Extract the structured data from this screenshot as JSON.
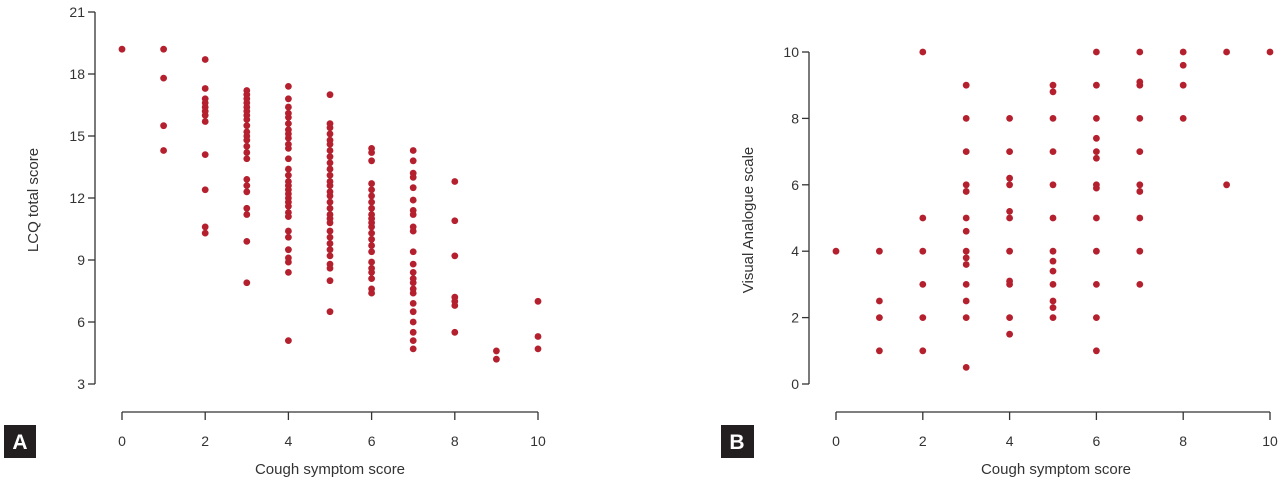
{
  "colors": {
    "marker": "#B5202E",
    "axis": "#333333",
    "tag_bg": "#231F20",
    "tag_text": "#ffffff"
  },
  "chart_data": [
    {
      "type": "scatter",
      "panel_label": "A",
      "xlabel": "Cough symptom score",
      "ylabel": "LCQ total score",
      "xlim": [
        0,
        10
      ],
      "ylim": [
        3,
        21
      ],
      "xticks": [
        0,
        2,
        4,
        6,
        8,
        10
      ],
      "yticks": [
        3,
        6,
        9,
        12,
        15,
        18,
        21
      ],
      "grid": false,
      "points": [
        [
          0,
          19.2
        ],
        [
          1,
          19.2
        ],
        [
          1,
          17.8
        ],
        [
          1,
          15.5
        ],
        [
          1,
          14.3
        ],
        [
          2,
          18.7
        ],
        [
          2,
          17.3
        ],
        [
          2,
          16.8
        ],
        [
          2,
          16.6
        ],
        [
          2,
          16.4
        ],
        [
          2,
          16.2
        ],
        [
          2,
          16.0
        ],
        [
          2,
          15.7
        ],
        [
          2,
          14.1
        ],
        [
          2,
          12.4
        ],
        [
          2,
          10.6
        ],
        [
          2,
          10.3
        ],
        [
          3,
          17.2
        ],
        [
          3,
          17.0
        ],
        [
          3,
          16.8
        ],
        [
          3,
          16.6
        ],
        [
          3,
          16.4
        ],
        [
          3,
          16.2
        ],
        [
          3,
          16.0
        ],
        [
          3,
          15.8
        ],
        [
          3,
          15.5
        ],
        [
          3,
          15.2
        ],
        [
          3,
          15.0
        ],
        [
          3,
          14.8
        ],
        [
          3,
          14.5
        ],
        [
          3,
          14.2
        ],
        [
          3,
          13.9
        ],
        [
          3,
          12.9
        ],
        [
          3,
          12.6
        ],
        [
          3,
          12.3
        ],
        [
          3,
          11.5
        ],
        [
          3,
          11.2
        ],
        [
          3,
          9.9
        ],
        [
          3,
          7.9
        ],
        [
          4,
          17.4
        ],
        [
          4,
          16.8
        ],
        [
          4,
          16.4
        ],
        [
          4,
          16.1
        ],
        [
          4,
          15.9
        ],
        [
          4,
          15.6
        ],
        [
          4,
          15.3
        ],
        [
          4,
          15.1
        ],
        [
          4,
          14.9
        ],
        [
          4,
          14.6
        ],
        [
          4,
          14.4
        ],
        [
          4,
          13.9
        ],
        [
          4,
          13.4
        ],
        [
          4,
          13.1
        ],
        [
          4,
          12.8
        ],
        [
          4,
          12.6
        ],
        [
          4,
          12.4
        ],
        [
          4,
          12.2
        ],
        [
          4,
          12.0
        ],
        [
          4,
          11.8
        ],
        [
          4,
          11.6
        ],
        [
          4,
          11.3
        ],
        [
          4,
          11.1
        ],
        [
          4,
          10.4
        ],
        [
          4,
          10.1
        ],
        [
          4,
          9.5
        ],
        [
          4,
          9.1
        ],
        [
          4,
          8.9
        ],
        [
          4,
          8.4
        ],
        [
          4,
          5.1
        ],
        [
          5,
          17.0
        ],
        [
          5,
          15.6
        ],
        [
          5,
          15.4
        ],
        [
          5,
          15.1
        ],
        [
          5,
          14.8
        ],
        [
          5,
          14.6
        ],
        [
          5,
          14.3
        ],
        [
          5,
          14.0
        ],
        [
          5,
          13.7
        ],
        [
          5,
          13.4
        ],
        [
          5,
          13.1
        ],
        [
          5,
          12.8
        ],
        [
          5,
          12.6
        ],
        [
          5,
          12.3
        ],
        [
          5,
          12.1
        ],
        [
          5,
          11.8
        ],
        [
          5,
          11.5
        ],
        [
          5,
          11.2
        ],
        [
          5,
          11.0
        ],
        [
          5,
          10.8
        ],
        [
          5,
          10.4
        ],
        [
          5,
          10.1
        ],
        [
          5,
          9.8
        ],
        [
          5,
          9.5
        ],
        [
          5,
          9.2
        ],
        [
          5,
          8.8
        ],
        [
          5,
          8.6
        ],
        [
          5,
          8.0
        ],
        [
          5,
          6.5
        ],
        [
          6,
          14.4
        ],
        [
          6,
          14.2
        ],
        [
          6,
          13.8
        ],
        [
          6,
          12.7
        ],
        [
          6,
          12.4
        ],
        [
          6,
          12.1
        ],
        [
          6,
          11.8
        ],
        [
          6,
          11.5
        ],
        [
          6,
          11.2
        ],
        [
          6,
          11.0
        ],
        [
          6,
          10.8
        ],
        [
          6,
          10.6
        ],
        [
          6,
          10.3
        ],
        [
          6,
          10.0
        ],
        [
          6,
          9.7
        ],
        [
          6,
          9.4
        ],
        [
          6,
          8.9
        ],
        [
          6,
          8.6
        ],
        [
          6,
          8.4
        ],
        [
          6,
          8.1
        ],
        [
          6,
          7.6
        ],
        [
          6,
          7.4
        ],
        [
          7,
          14.3
        ],
        [
          7,
          13.8
        ],
        [
          7,
          13.2
        ],
        [
          7,
          13.0
        ],
        [
          7,
          12.5
        ],
        [
          7,
          11.9
        ],
        [
          7,
          11.4
        ],
        [
          7,
          11.2
        ],
        [
          7,
          10.6
        ],
        [
          7,
          10.4
        ],
        [
          7,
          9.4
        ],
        [
          7,
          8.8
        ],
        [
          7,
          8.4
        ],
        [
          7,
          8.1
        ],
        [
          7,
          7.9
        ],
        [
          7,
          7.6
        ],
        [
          7,
          7.4
        ],
        [
          7,
          6.9
        ],
        [
          7,
          6.5
        ],
        [
          7,
          6.0
        ],
        [
          7,
          5.5
        ],
        [
          7,
          5.1
        ],
        [
          7,
          4.7
        ],
        [
          8,
          12.8
        ],
        [
          8,
          10.9
        ],
        [
          8,
          9.2
        ],
        [
          8,
          7.2
        ],
        [
          8,
          7.0
        ],
        [
          8,
          6.8
        ],
        [
          8,
          5.5
        ],
        [
          9,
          4.6
        ],
        [
          9,
          4.2
        ],
        [
          10,
          7.0
        ],
        [
          10,
          5.3
        ],
        [
          10,
          4.7
        ]
      ]
    },
    {
      "type": "scatter",
      "panel_label": "B",
      "xlabel": "Cough symptom score",
      "ylabel": "Visual Analogue scale",
      "xlim": [
        0,
        10
      ],
      "ylim": [
        0,
        10
      ],
      "xticks": [
        0,
        2,
        4,
        6,
        8,
        10
      ],
      "yticks": [
        0,
        2,
        4,
        6,
        8,
        10
      ],
      "grid": false,
      "points": [
        [
          0,
          4.0
        ],
        [
          1,
          4.0
        ],
        [
          1,
          2.5
        ],
        [
          1,
          2.0
        ],
        [
          1,
          1.0
        ],
        [
          2,
          10.0
        ],
        [
          2,
          5.0
        ],
        [
          2,
          4.0
        ],
        [
          2,
          3.0
        ],
        [
          2,
          2.0
        ],
        [
          2,
          1.0
        ],
        [
          3,
          9.0
        ],
        [
          3,
          8.0
        ],
        [
          3,
          7.0
        ],
        [
          3,
          6.0
        ],
        [
          3,
          5.8
        ],
        [
          3,
          5.0
        ],
        [
          3,
          4.6
        ],
        [
          3,
          4.0
        ],
        [
          3,
          3.8
        ],
        [
          3,
          3.6
        ],
        [
          3,
          3.0
        ],
        [
          3,
          2.5
        ],
        [
          3,
          2.0
        ],
        [
          3,
          0.5
        ],
        [
          4,
          8.0
        ],
        [
          4,
          7.0
        ],
        [
          4,
          6.2
        ],
        [
          4,
          6.0
        ],
        [
          4,
          5.2
        ],
        [
          4,
          5.0
        ],
        [
          4,
          4.0
        ],
        [
          4,
          3.1
        ],
        [
          4,
          3.0
        ],
        [
          4,
          2.0
        ],
        [
          4,
          1.5
        ],
        [
          5,
          9.0
        ],
        [
          5,
          8.8
        ],
        [
          5,
          8.0
        ],
        [
          5,
          7.0
        ],
        [
          5,
          6.0
        ],
        [
          5,
          5.0
        ],
        [
          5,
          4.0
        ],
        [
          5,
          3.7
        ],
        [
          5,
          3.4
        ],
        [
          5,
          3.0
        ],
        [
          5,
          2.5
        ],
        [
          5,
          2.3
        ],
        [
          5,
          2.0
        ],
        [
          6,
          10.0
        ],
        [
          6,
          9.0
        ],
        [
          6,
          8.0
        ],
        [
          6,
          7.4
        ],
        [
          6,
          7.0
        ],
        [
          6,
          6.8
        ],
        [
          6,
          6.0
        ],
        [
          6,
          5.9
        ],
        [
          6,
          5.0
        ],
        [
          6,
          4.0
        ],
        [
          6,
          3.0
        ],
        [
          6,
          2.0
        ],
        [
          6,
          1.0
        ],
        [
          7,
          10.0
        ],
        [
          7,
          9.1
        ],
        [
          7,
          9.0
        ],
        [
          7,
          8.0
        ],
        [
          7,
          7.0
        ],
        [
          7,
          6.0
        ],
        [
          7,
          5.8
        ],
        [
          7,
          5.0
        ],
        [
          7,
          4.0
        ],
        [
          7,
          3.0
        ],
        [
          8,
          10.0
        ],
        [
          8,
          9.6
        ],
        [
          8,
          9.0
        ],
        [
          8,
          8.0
        ],
        [
          9,
          10.0
        ],
        [
          9,
          6.0
        ],
        [
          10,
          10.0
        ]
      ]
    }
  ]
}
